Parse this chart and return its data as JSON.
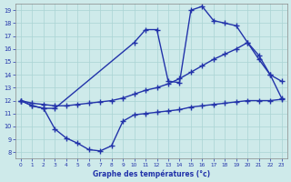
{
  "title": "Graphe des températures (°c)",
  "bg_color": "#ceeaea",
  "grid_color": "#aad4d4",
  "line_color": "#2233aa",
  "xlim": [
    -0.5,
    23.5
  ],
  "ylim": [
    7.5,
    19.5
  ],
  "xticks": [
    0,
    1,
    2,
    3,
    4,
    5,
    6,
    7,
    8,
    9,
    10,
    11,
    12,
    13,
    14,
    15,
    16,
    17,
    18,
    19,
    20,
    21,
    22,
    23
  ],
  "yticks": [
    8,
    9,
    10,
    11,
    12,
    13,
    14,
    15,
    16,
    17,
    18,
    19
  ],
  "line_max": {
    "x": [
      0,
      1,
      2,
      3,
      10,
      11,
      12,
      13,
      14,
      15,
      16,
      17,
      18,
      19,
      20,
      21,
      22,
      23
    ],
    "y": [
      12,
      11.6,
      11.4,
      11.4,
      16.5,
      17.5,
      17.5,
      13.5,
      13.4,
      19.0,
      19.3,
      18.2,
      18.0,
      17.8,
      16.5,
      15.2,
      14.0,
      13.5
    ]
  },
  "line_mean": {
    "x": [
      0,
      1,
      2,
      3,
      4,
      5,
      6,
      7,
      8,
      9,
      10,
      11,
      12,
      13,
      14,
      15,
      16,
      17,
      18,
      19,
      20,
      21,
      22,
      23
    ],
    "y": [
      12,
      11.8,
      11.7,
      11.6,
      11.6,
      11.7,
      11.8,
      11.9,
      12.0,
      12.2,
      12.5,
      12.8,
      13.0,
      13.3,
      13.7,
      14.2,
      14.7,
      15.2,
      15.6,
      16.0,
      16.5,
      15.5,
      14.0,
      12.2
    ]
  },
  "line_min": {
    "x": [
      0,
      1,
      2,
      3,
      4,
      5,
      6,
      7,
      8,
      9,
      10,
      11,
      12,
      13,
      14,
      15,
      16,
      17,
      18,
      19,
      20,
      21,
      22,
      23
    ],
    "y": [
      12,
      11.6,
      11.4,
      9.8,
      9.1,
      8.7,
      8.2,
      8.1,
      8.5,
      10.4,
      10.9,
      11.0,
      11.1,
      11.2,
      11.3,
      11.5,
      11.6,
      11.7,
      11.8,
      11.9,
      12.0,
      12.0,
      12.0,
      12.1
    ]
  },
  "marker_size": 2.5,
  "line_width": 1.0
}
